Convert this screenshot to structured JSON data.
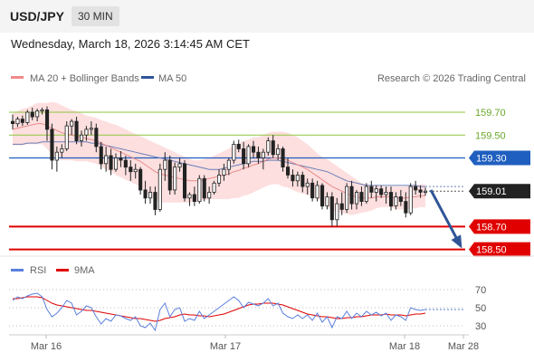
{
  "header": {
    "symbol": "USD/JPY",
    "timeframe": "30 MIN"
  },
  "datetime": "Wednesday, March 18, 2026 3:14:45 AM CET",
  "copyright": "Research © 2026 Trading Central",
  "legend": {
    "ma20_bb": {
      "label": "MA 20 + Bollinger Bands",
      "color": "#f08a8a"
    },
    "ma50": {
      "label": "MA 50",
      "color": "#2f5597"
    },
    "rsi": {
      "label": "RSI",
      "color": "#5b7fdc"
    },
    "ma9": {
      "label": "9MA",
      "color": "#e00000"
    }
  },
  "chart_data": [
    {
      "type": "candlestick",
      "ylim": [
        158.45,
        159.85
      ],
      "levels": [
        {
          "value": 159.7,
          "label": "159.70",
          "color": "#8dc63f",
          "kind": "resistance"
        },
        {
          "value": 159.5,
          "label": "159.50",
          "color": "#8dc63f",
          "kind": "resistance"
        },
        {
          "value": 159.3,
          "label": "159.30",
          "color": "#1f5fbf",
          "kind": "pivot"
        },
        {
          "value": 158.7,
          "label": "158.70",
          "color": "#e00000",
          "kind": "support"
        },
        {
          "value": 158.5,
          "label": "158.50",
          "color": "#e00000",
          "kind": "support"
        }
      ],
      "last_price": {
        "value": 159.01,
        "label": "159.01"
      },
      "forecast_arrow": {
        "from": 159.02,
        "to": 158.53,
        "color": "#2f5597"
      },
      "x_ticks": [
        "Mar 16",
        "Mar 17",
        "Mar 18",
        "Mar 28"
      ],
      "candles_ohlc": [
        [
          159.62,
          159.68,
          159.55,
          159.6
        ],
        [
          159.6,
          159.66,
          159.57,
          159.64
        ],
        [
          159.64,
          159.67,
          159.58,
          159.61
        ],
        [
          159.61,
          159.72,
          159.59,
          159.7
        ],
        [
          159.7,
          159.74,
          159.63,
          159.66
        ],
        [
          159.66,
          159.73,
          159.62,
          159.71
        ],
        [
          159.71,
          159.74,
          159.68,
          159.72
        ],
        [
          159.72,
          159.75,
          159.45,
          159.55
        ],
        [
          159.55,
          159.6,
          159.2,
          159.28
        ],
        [
          159.28,
          159.4,
          159.18,
          159.35
        ],
        [
          159.35,
          159.42,
          159.3,
          159.38
        ],
        [
          159.38,
          159.62,
          159.36,
          159.58
        ],
        [
          159.58,
          159.64,
          159.5,
          159.62
        ],
        [
          159.62,
          159.66,
          159.42,
          159.45
        ],
        [
          159.45,
          159.54,
          159.4,
          159.5
        ],
        [
          159.5,
          159.58,
          159.45,
          159.55
        ],
        [
          159.55,
          159.62,
          159.5,
          159.56
        ],
        [
          159.56,
          159.6,
          159.35,
          159.4
        ],
        [
          159.4,
          159.44,
          159.2,
          159.25
        ],
        [
          159.25,
          159.4,
          159.18,
          159.32
        ],
        [
          159.32,
          159.38,
          159.15,
          159.2
        ],
        [
          159.2,
          159.34,
          159.18,
          159.3
        ],
        [
          159.3,
          159.36,
          159.22,
          159.28
        ],
        [
          159.28,
          159.32,
          159.15,
          159.22
        ],
        [
          159.22,
          159.28,
          159.1,
          159.18
        ],
        [
          159.18,
          159.25,
          159.12,
          159.2
        ],
        [
          159.2,
          159.22,
          158.98,
          159.02
        ],
        [
          159.02,
          159.1,
          158.9,
          158.95
        ],
        [
          158.95,
          159.05,
          158.9,
          159.0
        ],
        [
          159.0,
          159.05,
          158.8,
          158.85
        ],
        [
          158.85,
          159.25,
          158.83,
          159.2
        ],
        [
          159.2,
          159.35,
          159.1,
          159.28
        ],
        [
          159.28,
          159.32,
          158.98,
          159.02
        ],
        [
          159.02,
          159.26,
          158.98,
          159.22
        ],
        [
          159.22,
          159.3,
          159.18,
          159.25
        ],
        [
          159.25,
          159.28,
          158.92,
          158.95
        ],
        [
          158.95,
          159.0,
          158.88,
          158.98
        ],
        [
          158.98,
          159.05,
          158.88,
          158.92
        ],
        [
          158.92,
          159.15,
          158.9,
          159.12
        ],
        [
          159.12,
          159.15,
          158.92,
          158.95
        ],
        [
          158.95,
          159.05,
          158.9,
          159.0
        ],
        [
          159.0,
          159.1,
          158.98,
          159.08
        ],
        [
          159.08,
          159.2,
          159.05,
          159.15
        ],
        [
          159.15,
          159.25,
          159.1,
          159.2
        ],
        [
          159.2,
          159.3,
          159.15,
          159.28
        ],
        [
          159.28,
          159.45,
          159.25,
          159.42
        ],
        [
          159.42,
          159.46,
          159.35,
          159.38
        ],
        [
          159.38,
          159.44,
          159.2,
          159.25
        ],
        [
          159.25,
          159.42,
          159.22,
          159.4
        ],
        [
          159.4,
          159.45,
          159.3,
          159.35
        ],
        [
          159.35,
          159.4,
          159.25,
          159.3
        ],
        [
          159.3,
          159.38,
          159.2,
          159.35
        ],
        [
          159.35,
          159.48,
          159.32,
          159.45
        ],
        [
          159.45,
          159.5,
          159.3,
          159.33
        ],
        [
          159.33,
          159.42,
          159.28,
          159.38
        ],
        [
          159.38,
          159.4,
          159.18,
          159.22
        ],
        [
          159.22,
          159.3,
          159.12,
          159.15
        ],
        [
          159.15,
          159.2,
          159.05,
          159.1
        ],
        [
          159.1,
          159.18,
          159.05,
          159.15
        ],
        [
          159.15,
          159.18,
          159.0,
          159.05
        ],
        [
          159.05,
          159.12,
          158.98,
          159.08
        ],
        [
          159.08,
          159.12,
          158.92,
          158.95
        ],
        [
          158.95,
          159.1,
          158.92,
          159.06
        ],
        [
          159.06,
          159.08,
          158.85,
          158.88
        ],
        [
          158.88,
          159.0,
          158.85,
          158.96
        ],
        [
          158.96,
          159.0,
          158.7,
          158.76
        ],
        [
          158.76,
          158.95,
          158.7,
          158.9
        ],
        [
          158.9,
          159.0,
          158.8,
          158.85
        ],
        [
          158.85,
          159.08,
          158.82,
          159.05
        ],
        [
          159.05,
          159.1,
          158.85,
          158.9
        ],
        [
          158.9,
          159.02,
          158.85,
          159.0
        ],
        [
          159.0,
          159.05,
          158.88,
          158.92
        ],
        [
          158.92,
          159.08,
          158.9,
          159.05
        ],
        [
          159.05,
          159.1,
          158.95,
          159.0
        ],
        [
          159.0,
          159.06,
          158.92,
          159.03
        ],
        [
          159.03,
          159.06,
          158.95,
          158.98
        ],
        [
          158.98,
          159.05,
          158.9,
          159.0
        ],
        [
          159.0,
          159.05,
          158.84,
          158.88
        ],
        [
          158.88,
          159.0,
          158.85,
          158.96
        ],
        [
          158.96,
          159.02,
          158.88,
          158.92
        ],
        [
          158.92,
          159.0,
          158.78,
          158.82
        ],
        [
          158.82,
          159.08,
          158.8,
          159.05
        ],
        [
          159.05,
          159.1,
          158.98,
          159.02
        ],
        [
          159.02,
          159.06,
          158.95,
          159.0
        ],
        [
          159.0,
          159.04,
          158.97,
          159.01
        ]
      ],
      "ma50": [
        159.42,
        159.42,
        159.42,
        159.43,
        159.43,
        159.43,
        159.44,
        159.44,
        159.44,
        159.44,
        159.44,
        159.44,
        159.44,
        159.44,
        159.44,
        159.44,
        159.43,
        159.43,
        159.42,
        159.41,
        159.4,
        159.39,
        159.38,
        159.37,
        159.36,
        159.35,
        159.34,
        159.33,
        159.32,
        159.31,
        159.3,
        159.29,
        159.28,
        159.27,
        159.26,
        159.25,
        159.24,
        159.23,
        159.22,
        159.21,
        159.2,
        159.2,
        159.2,
        159.21,
        159.22,
        159.23,
        159.24,
        159.25,
        159.26,
        159.27,
        159.27,
        159.27,
        159.28,
        159.28,
        159.28,
        159.27,
        159.26,
        159.25,
        159.24,
        159.23,
        159.22,
        159.21,
        159.2,
        159.19,
        159.18,
        159.16,
        159.14,
        159.12,
        159.1,
        159.09,
        159.08,
        159.07,
        159.06,
        159.06,
        159.06,
        159.06,
        159.06,
        159.06,
        159.06,
        159.06,
        159.06,
        159.06,
        159.06,
        159.05,
        159.05
      ],
      "ma20": [
        159.55,
        159.56,
        159.57,
        159.58,
        159.59,
        159.6,
        159.6,
        159.58,
        159.56,
        159.54,
        159.52,
        159.51,
        159.5,
        159.49,
        159.48,
        159.47,
        159.46,
        159.45,
        159.43,
        159.41,
        159.39,
        159.37,
        159.35,
        159.33,
        159.31,
        159.29,
        159.27,
        159.24,
        159.21,
        159.18,
        159.16,
        159.15,
        159.14,
        159.13,
        159.12,
        159.11,
        159.1,
        159.1,
        159.1,
        159.11,
        159.12,
        159.13,
        159.14,
        159.15,
        159.16,
        159.18,
        159.19,
        159.21,
        159.22,
        159.24,
        159.25,
        159.27,
        159.29,
        159.3,
        159.3,
        159.29,
        159.28,
        159.26,
        159.24,
        159.22,
        159.2,
        159.17,
        159.14,
        159.11,
        159.08,
        159.05,
        159.03,
        159.01,
        158.99,
        158.97,
        158.96,
        158.95,
        158.95,
        158.95,
        158.96,
        158.96,
        158.96,
        158.96,
        158.95,
        158.95,
        158.95,
        158.96,
        158.96,
        158.97,
        158.97
      ],
      "bb_width": [
        0.14,
        0.15,
        0.16,
        0.16,
        0.17,
        0.18,
        0.18,
        0.2,
        0.23,
        0.24,
        0.24,
        0.23,
        0.22,
        0.22,
        0.21,
        0.2,
        0.2,
        0.2,
        0.2,
        0.21,
        0.21,
        0.22,
        0.22,
        0.22,
        0.22,
        0.22,
        0.22,
        0.23,
        0.24,
        0.25,
        0.25,
        0.24,
        0.23,
        0.22,
        0.21,
        0.2,
        0.19,
        0.18,
        0.18,
        0.18,
        0.18,
        0.19,
        0.2,
        0.21,
        0.22,
        0.23,
        0.24,
        0.24,
        0.24,
        0.24,
        0.23,
        0.23,
        0.23,
        0.23,
        0.23,
        0.24,
        0.24,
        0.24,
        0.24,
        0.23,
        0.22,
        0.21,
        0.2,
        0.2,
        0.21,
        0.21,
        0.2,
        0.19,
        0.18,
        0.17,
        0.15,
        0.13,
        0.12,
        0.11,
        0.1,
        0.09,
        0.09,
        0.09,
        0.1,
        0.1,
        0.1,
        0.1,
        0.1,
        0.1,
        0.1
      ]
    },
    {
      "type": "line",
      "name": "rsi",
      "ylim": [
        22,
        78
      ],
      "y_ticks": [
        70,
        50,
        30
      ],
      "rsi": [
        58,
        62,
        60,
        63,
        65,
        66,
        62,
        48,
        40,
        44,
        50,
        58,
        55,
        42,
        46,
        52,
        50,
        40,
        32,
        38,
        35,
        42,
        41,
        38,
        36,
        40,
        30,
        28,
        33,
        25,
        48,
        55,
        40,
        48,
        50,
        35,
        38,
        36,
        46,
        38,
        42,
        46,
        50,
        54,
        58,
        62,
        58,
        50,
        56,
        54,
        52,
        55,
        60,
        52,
        55,
        44,
        40,
        38,
        42,
        38,
        42,
        36,
        44,
        34,
        40,
        28,
        40,
        38,
        46,
        38,
        44,
        40,
        46,
        42,
        45,
        41,
        44,
        36,
        42,
        40,
        36,
        50,
        48,
        47,
        48
      ],
      "ma9": [
        60,
        60,
        61,
        62,
        62,
        62,
        61,
        58,
        55,
        53,
        52,
        51,
        50,
        49,
        48,
        47,
        47,
        46,
        45,
        44,
        43,
        42,
        41,
        40,
        39,
        38,
        38,
        37,
        36,
        35,
        36,
        38,
        39,
        40,
        42,
        43,
        42,
        42,
        41,
        41,
        40,
        41,
        42,
        43,
        45,
        47,
        49,
        51,
        53,
        54,
        54,
        55,
        55,
        55,
        54,
        53,
        51,
        49,
        47,
        45,
        43,
        42,
        41,
        40,
        40,
        39,
        38,
        38,
        39,
        39,
        40,
        40,
        41,
        42,
        42,
        42,
        43,
        42,
        42,
        42,
        41,
        42,
        43,
        43,
        44
      ],
      "x_ticks": [
        "Mar 16",
        "Mar 17",
        "Mar 18",
        "Mar 28"
      ]
    }
  ]
}
